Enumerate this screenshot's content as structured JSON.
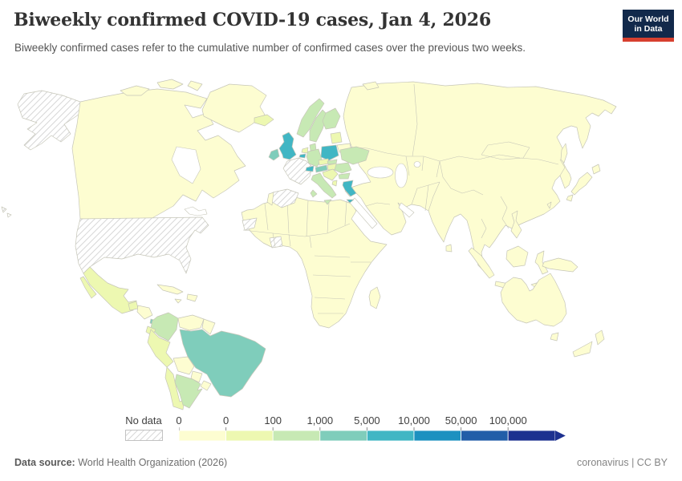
{
  "header": {
    "title": "Biweekly confirmed COVID-19 cases, Jan 4, 2026",
    "subtitle": "Biweekly confirmed cases refer to the cumulative number of confirmed cases over the previous two weeks.",
    "logo_line1": "Our World",
    "logo_line2": "in Data",
    "logo_bg_color": "#12294b",
    "logo_bar_color": "#d7402f"
  },
  "legend": {
    "no_data_label": "No data",
    "ticks": [
      "0",
      "0",
      "100",
      "1,000",
      "5,000",
      "10,000",
      "50,000",
      "100,000"
    ]
  },
  "footer": {
    "source_label": "Data source:",
    "source_value": "World Health Organization (2026)",
    "right_text": "coronavirus | CC BY"
  },
  "map": {
    "ocean_color": "#ffffff",
    "border_color": "#c6c6b8",
    "bucket_colors": [
      "#fdfdd1",
      "#edf8b1",
      "#c7e9b4",
      "#7fcdbb",
      "#41b6c4",
      "#1d91c0",
      "#225ea8",
      "#1d3190"
    ],
    "countries": {
      "alaska": "no-data",
      "united-states": "no-data",
      "hawaii": "no-data",
      "france": "no-data",
      "spain": "no-data",
      "western-sahara": "no-data",
      "cote-divoire": "no-data",
      "canada": 0,
      "greenland": 0,
      "arctic-islands": 0,
      "svalbard": 0,
      "cuba": 0,
      "hispaniola": 0,
      "jamaica": 0,
      "honduras-nicaragua": 0,
      "venezuela": 0,
      "guyana": 0,
      "bolivia": 0,
      "paraguay": 0,
      "uruguay": 0,
      "portugal": 0,
      "belarus": 0,
      "africa": 0,
      "madagascar": 0,
      "asia": 0,
      "japan": 0,
      "sakhalin": 0,
      "taiwan": 0,
      "philippines": 0,
      "sri-lanka": 0,
      "indonesia": 0,
      "new-guinea": 0,
      "timor": 0,
      "australia": 0,
      "tasmania": 0,
      "new-zealand": 0,
      "mexico": 1,
      "guatemala": 1,
      "peru": 1,
      "ecuador": 1,
      "chile": 1,
      "iceland": 1,
      "baltics": 1,
      "netherlands": 1,
      "czechia": 1,
      "hungary": 1,
      "croatia-serbia": 1,
      "albania": 1,
      "colombia": 2,
      "argentina": 2,
      "norway": 2,
      "sweden": 2,
      "finland": 2,
      "denmark": 2,
      "germany": 2,
      "ukraine": 2,
      "romania": 2,
      "bulgaria": 2,
      "slovakia": 2,
      "italy": 2,
      "brazil": 3,
      "ireland": 3,
      "costa-rica": 3,
      "panama": 3,
      "austria": 3,
      "united-kingdom": 4,
      "poland": 4,
      "switzerland": 4,
      "greece": 4,
      "belgium": 4
    }
  },
  "chart_data": {
    "type": "choropleth",
    "title": "Biweekly confirmed COVID-19 cases, Jan 4, 2026",
    "unit": "biweekly confirmed cases",
    "legend_bins": [
      "0",
      "0–100",
      "100–1,000",
      "1,000–5,000",
      "5,000–10,000",
      "10,000–50,000",
      "50,000–100,000",
      "100,000+"
    ],
    "legend_position": "bottom",
    "no_data": [
      "United States",
      "France",
      "Spain",
      "Western Sahara",
      "Côte d'Ivoire"
    ],
    "country_values": {
      "United States": "no data",
      "France": "no data",
      "Spain": "no data",
      "Western Sahara": "no data",
      "Côte d'Ivoire": "no data",
      "Canada": "0",
      "Greenland": "0",
      "Russia": "0",
      "China": "0",
      "India": "0",
      "Australia": "0",
      "New Zealand": "0",
      "Japan": "0",
      "Turkey": "0",
      "Most of Africa": "0",
      "Most of Asia": "0",
      "Venezuela": "0",
      "Bolivia": "0",
      "Paraguay": "0",
      "Portugal": "0",
      "Belarus": "0",
      "Mexico": "0–100",
      "Peru": "0–100",
      "Chile": "0–100",
      "Czechia": "0–100",
      "Hungary": "0–100",
      "Iceland": "0–100",
      "Colombia": "100–1,000",
      "Argentina": "100–1,000",
      "Norway": "100–1,000",
      "Sweden": "100–1,000",
      "Finland": "100–1,000",
      "Germany": "100–1,000",
      "Italy": "100–1,000",
      "Ukraine": "100–1,000",
      "Romania": "100–1,000",
      "Denmark": "100–1,000",
      "Brazil": "1,000–5,000",
      "Ireland": "1,000–5,000",
      "Austria": "1,000–5,000",
      "United Kingdom": "5,000–10,000",
      "Poland": "5,000–10,000",
      "Switzerland": "5,000–10,000",
      "Greece": "5,000–10,000"
    }
  }
}
